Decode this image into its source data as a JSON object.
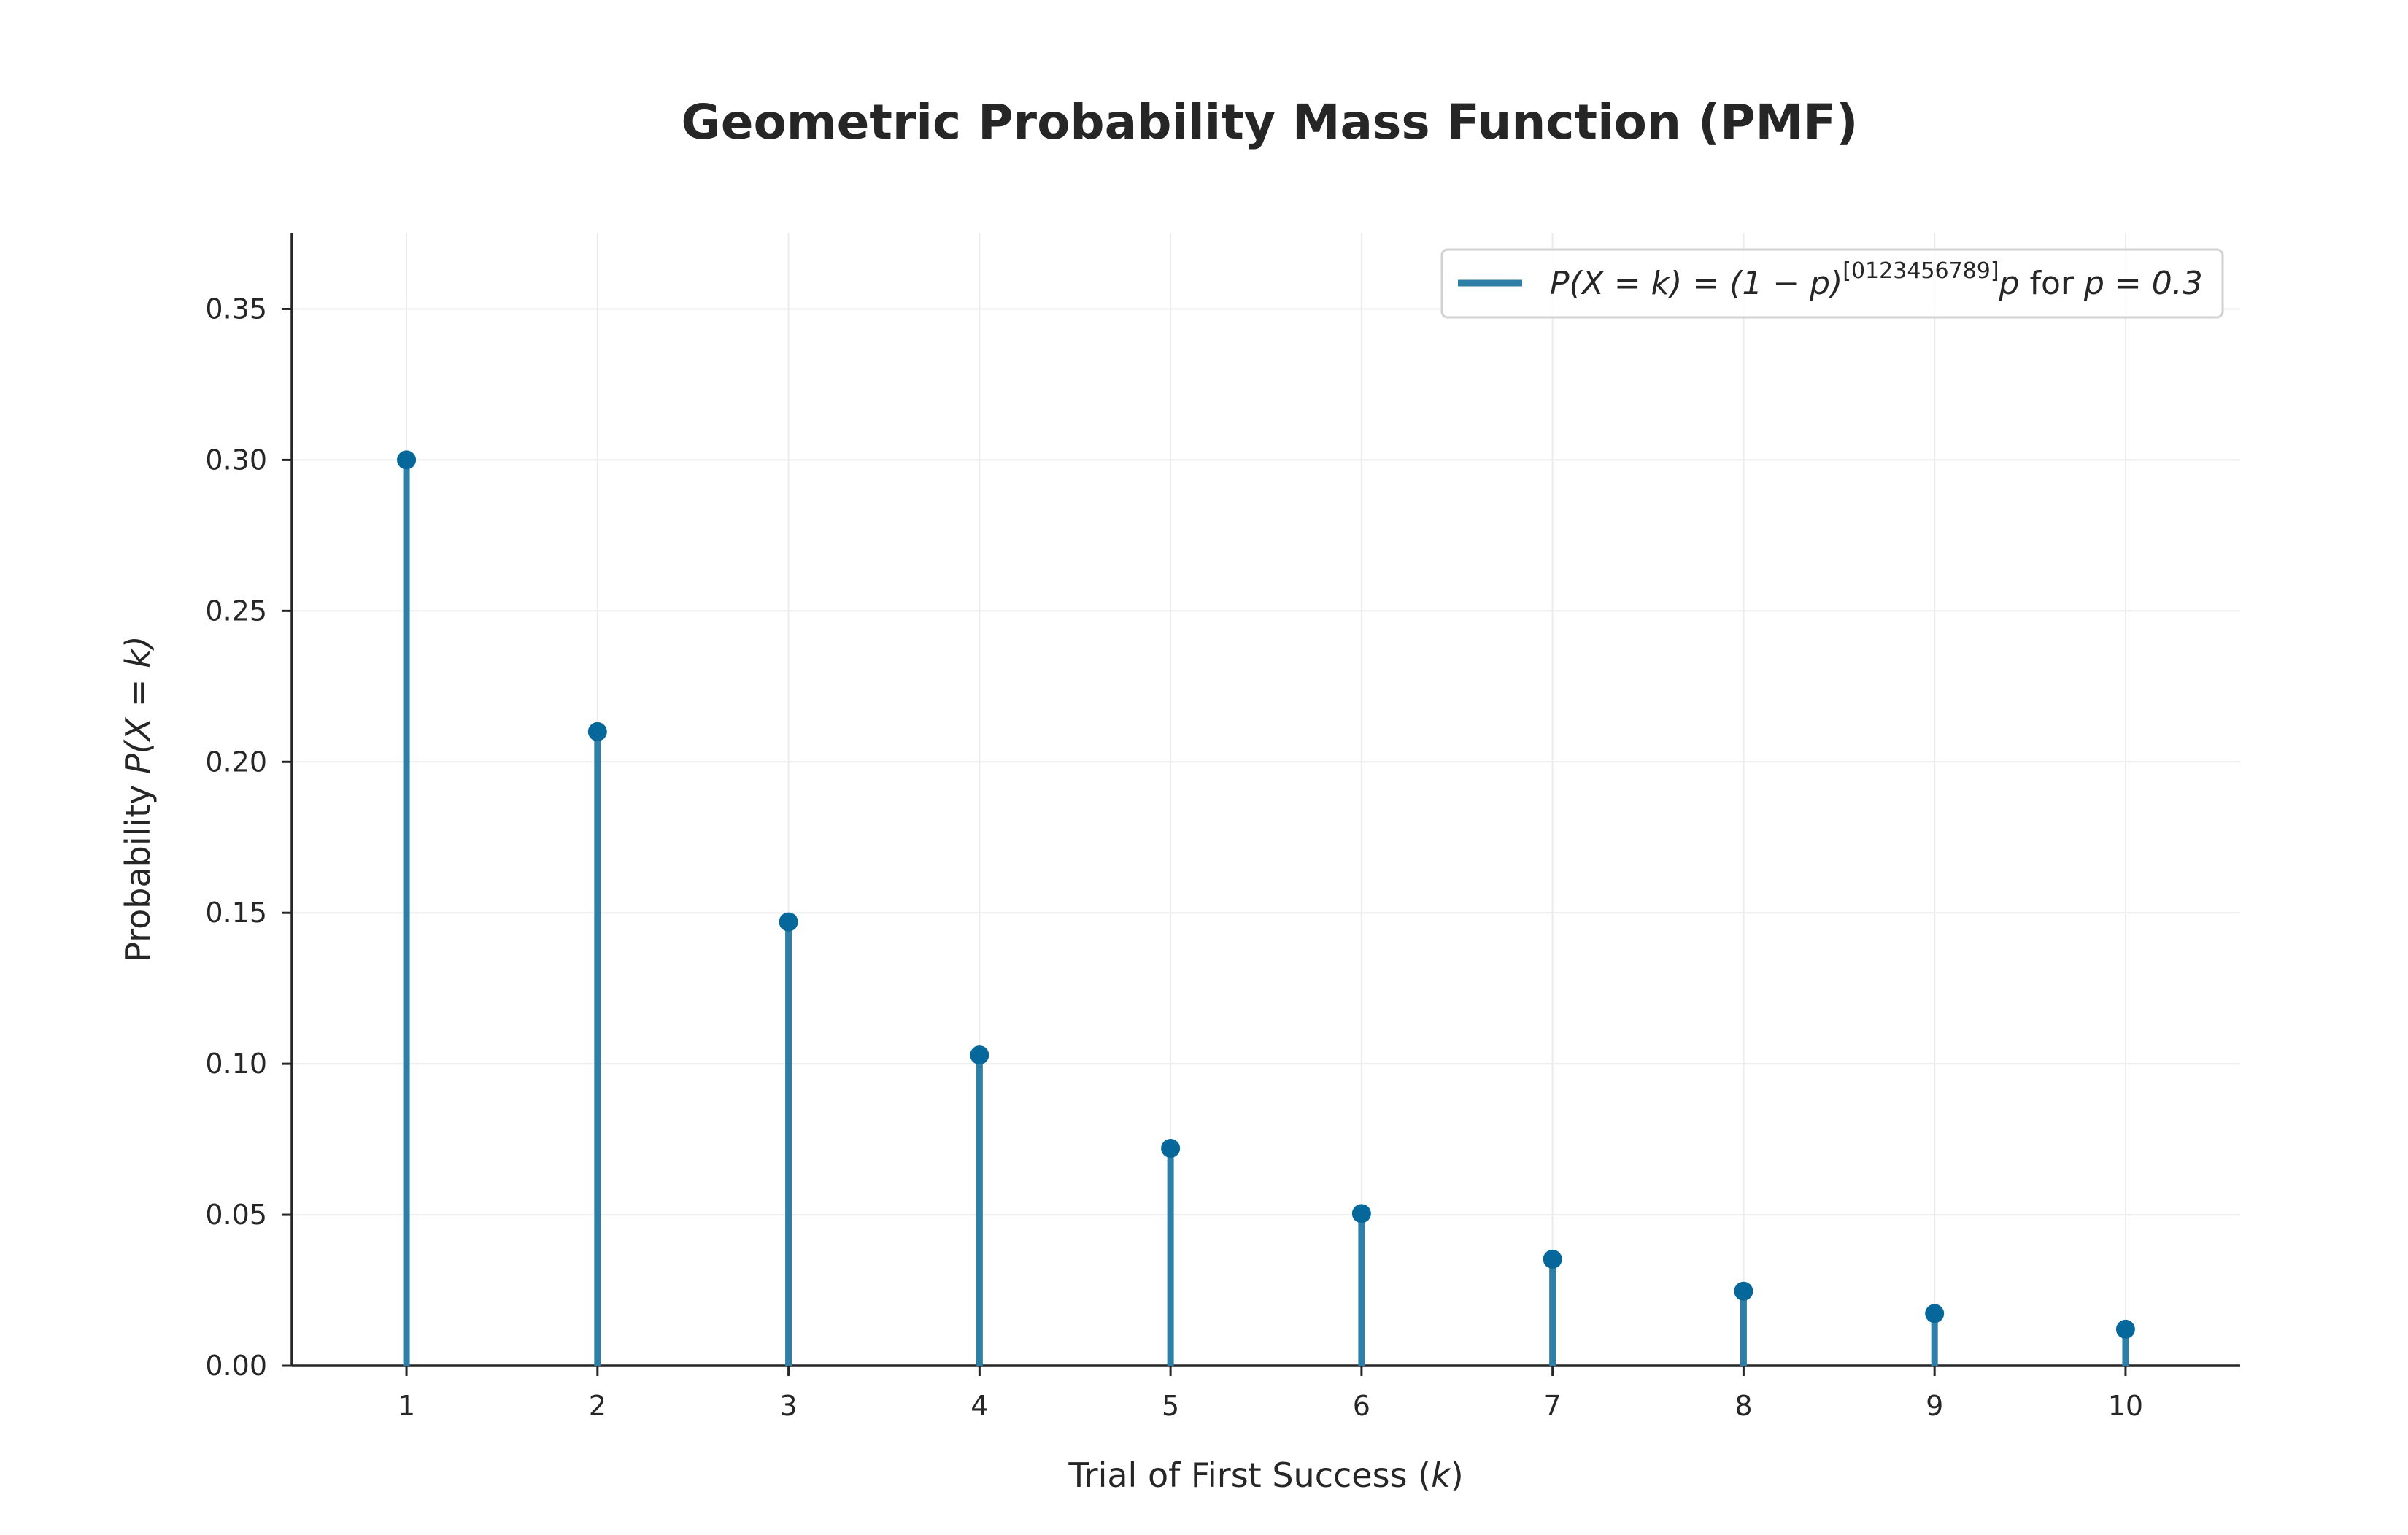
{
  "chart_data": {
    "type": "stem",
    "title": "Geometric Probability Mass Function (PMF)",
    "xlabel_prefix": "Trial of First Success (",
    "xlabel_var": "k",
    "xlabel_suffix": ")",
    "ylabel_prefix": "Probability ",
    "ylabel_math": "P(X = k)",
    "x": [
      1,
      2,
      3,
      4,
      5,
      6,
      7,
      8,
      9,
      10
    ],
    "y": [
      0.3,
      0.21,
      0.147,
      0.1029,
      0.072,
      0.0504,
      0.0353,
      0.0247,
      0.0173,
      0.0121
    ],
    "xlim": [
      0.4,
      10.6
    ],
    "ylim": [
      0,
      0.375
    ],
    "yticks": [
      "0.00",
      "0.05",
      "0.10",
      "0.15",
      "0.20",
      "0.25",
      "0.30",
      "0.35"
    ],
    "xticks": [
      "1",
      "2",
      "3",
      "4",
      "5",
      "6",
      "7",
      "8",
      "9",
      "10"
    ],
    "grid": true,
    "legend": {
      "placement": "upper right",
      "main": "P(X = k) = (1 − p)",
      "superscript": "[0123456789]",
      "tail_var": "p",
      "tail_text": " for ",
      "tail_param": "p = 0.3"
    },
    "colors": {
      "stem": "#2e7fa8",
      "marker": "#06679b",
      "grid": "#ebebeb",
      "axis": "#262626"
    }
  }
}
